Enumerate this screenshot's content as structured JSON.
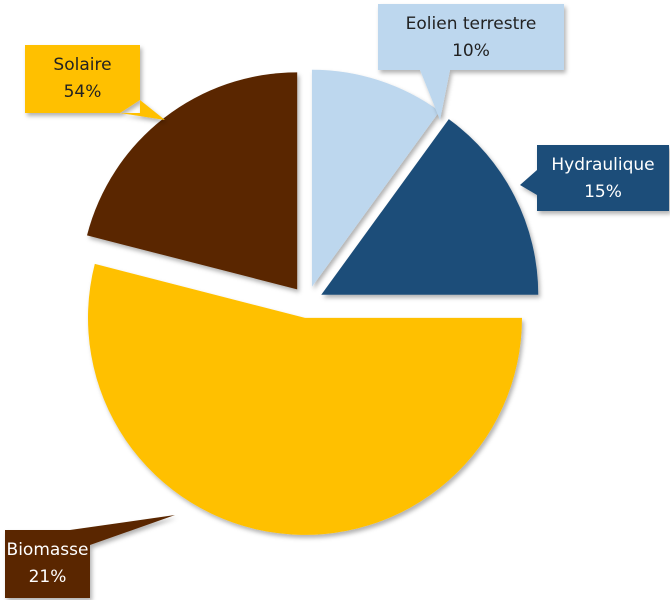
{
  "chart_data": {
    "type": "pie",
    "categories": [
      "Eolien terrestre",
      "Hydraulique",
      "Solaire",
      "Biomasse"
    ],
    "values": [
      10,
      15,
      54,
      21
    ],
    "value_labels": [
      "10%",
      "15%",
      "54%",
      "21%"
    ],
    "colors": [
      "#bdd7ee",
      "#1f4e79",
      "#ffc000",
      "#5a2800"
    ],
    "label_text_colors": [
      "#222222",
      "#ffffff",
      "#222222",
      "#ffffff"
    ]
  }
}
